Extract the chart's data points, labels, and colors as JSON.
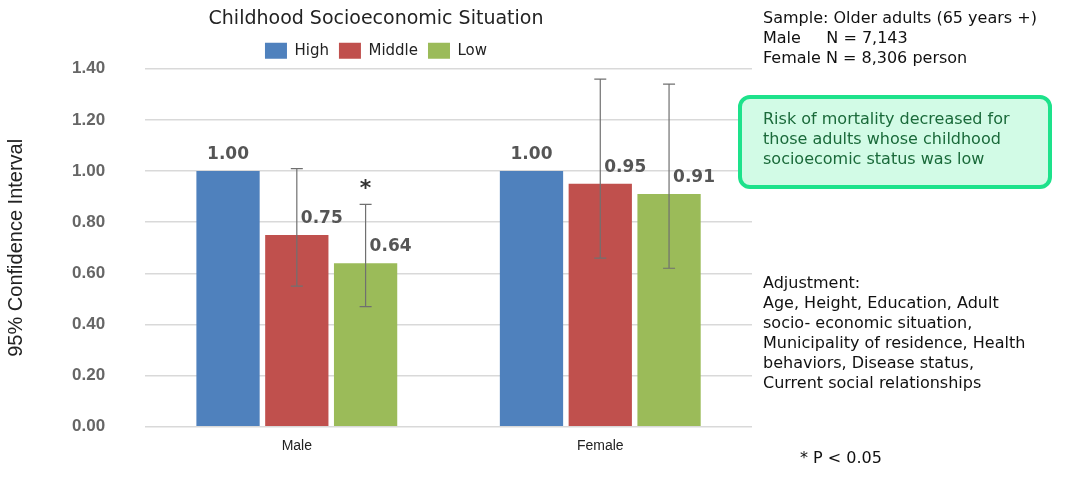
{
  "chart_data": {
    "type": "bar",
    "title": "Childhood Socioeconomic Situation",
    "ylabel": "95% Confidence Interval",
    "categories": [
      "Male",
      "Female"
    ],
    "series": [
      {
        "name": "High",
        "color": "#4f81bd",
        "values": [
          1.0,
          1.0
        ],
        "value_labels": [
          "1.00",
          "1.00"
        ]
      },
      {
        "name": "Middle",
        "color": "#c0504d",
        "values": [
          0.75,
          0.95
        ],
        "errors": [
          [
            0.55,
            1.01
          ],
          [
            0.66,
            1.36
          ]
        ],
        "value_labels": [
          "0.75",
          "0.95"
        ]
      },
      {
        "name": "Low",
        "color": "#9bbb59",
        "values": [
          0.64,
          0.91
        ],
        "errors": [
          [
            0.47,
            0.87
          ],
          [
            0.62,
            1.34
          ]
        ],
        "value_labels": [
          "0.64",
          "0.91"
        ]
      }
    ],
    "ylim": [
      0,
      1.4
    ],
    "yticks": [
      {
        "value": 0,
        "label": "0.00"
      },
      {
        "value": 0.2,
        "label": "0.20"
      },
      {
        "value": 0.4,
        "label": "0.40"
      },
      {
        "value": 0.6,
        "label": "0.60"
      },
      {
        "value": 0.8,
        "label": "0.80"
      },
      {
        "value": 1,
        "label": "1.00"
      },
      {
        "value": 1.2,
        "label": "1.20"
      },
      {
        "value": 1.4,
        "label": "1.40"
      }
    ],
    "grid": "y",
    "legend": "top",
    "annotations": [
      "Sample: Older adults (65 years +)\nMale     N = 7,143\nFemale N = 8,306 person",
      "Risk of mortality decreased for\nthose adults whose childhood\nsocioecomic status was low",
      "Adjustment:\nAge, Height, Education, Adult\nsocio- economic situation,\nMunicipality of residence, Health\nbehaviors, Disease status,\nCurrent social relationships",
      "* P < 0.05",
      {
        "text": "*",
        "x": "Male",
        "y": 0.87
      }
    ]
  }
}
